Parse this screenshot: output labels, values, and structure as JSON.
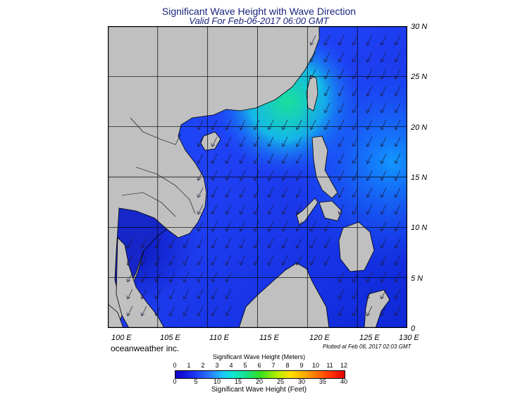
{
  "header": {
    "title": "Significant Wave Height with Wave Direction",
    "subtitle": "Valid For Feb-06-2017 06:00 GMT"
  },
  "map": {
    "latitude_labels": [
      "30 N",
      "25 N",
      "20 N",
      "15 N",
      "10 N",
      "5 N",
      "0"
    ],
    "longitude_labels": [
      "100 E",
      "105 E",
      "110 E",
      "115 E",
      "120 E",
      "125 E",
      "130 E"
    ],
    "extent": {
      "lon_min": 100,
      "lon_max": 130,
      "lat_min": 0,
      "lat_max": 30
    },
    "colors": {
      "land": "#c0c0c0",
      "coast": "#000000",
      "grid": "#000000",
      "arrow": "#1a1a3a"
    },
    "wave_direction": "northeast monsoon swell toward southwest"
  },
  "footer": {
    "brand": "oceanweather inc.",
    "plotted": "Plotted at Feb 06, 2017 02:03 GMT"
  },
  "colorbar": {
    "meters_title": "Significant Wave Height (Meters)",
    "feet_title": "Significant Wave Height (Feet)",
    "meters_ticks": [
      "0",
      "1",
      "2",
      "3",
      "4",
      "5",
      "6",
      "7",
      "8",
      "9",
      "10",
      "11",
      "12"
    ],
    "feet_ticks": [
      "0",
      "5",
      "10",
      "15",
      "20",
      "25",
      "30",
      "35",
      "40"
    ]
  }
}
